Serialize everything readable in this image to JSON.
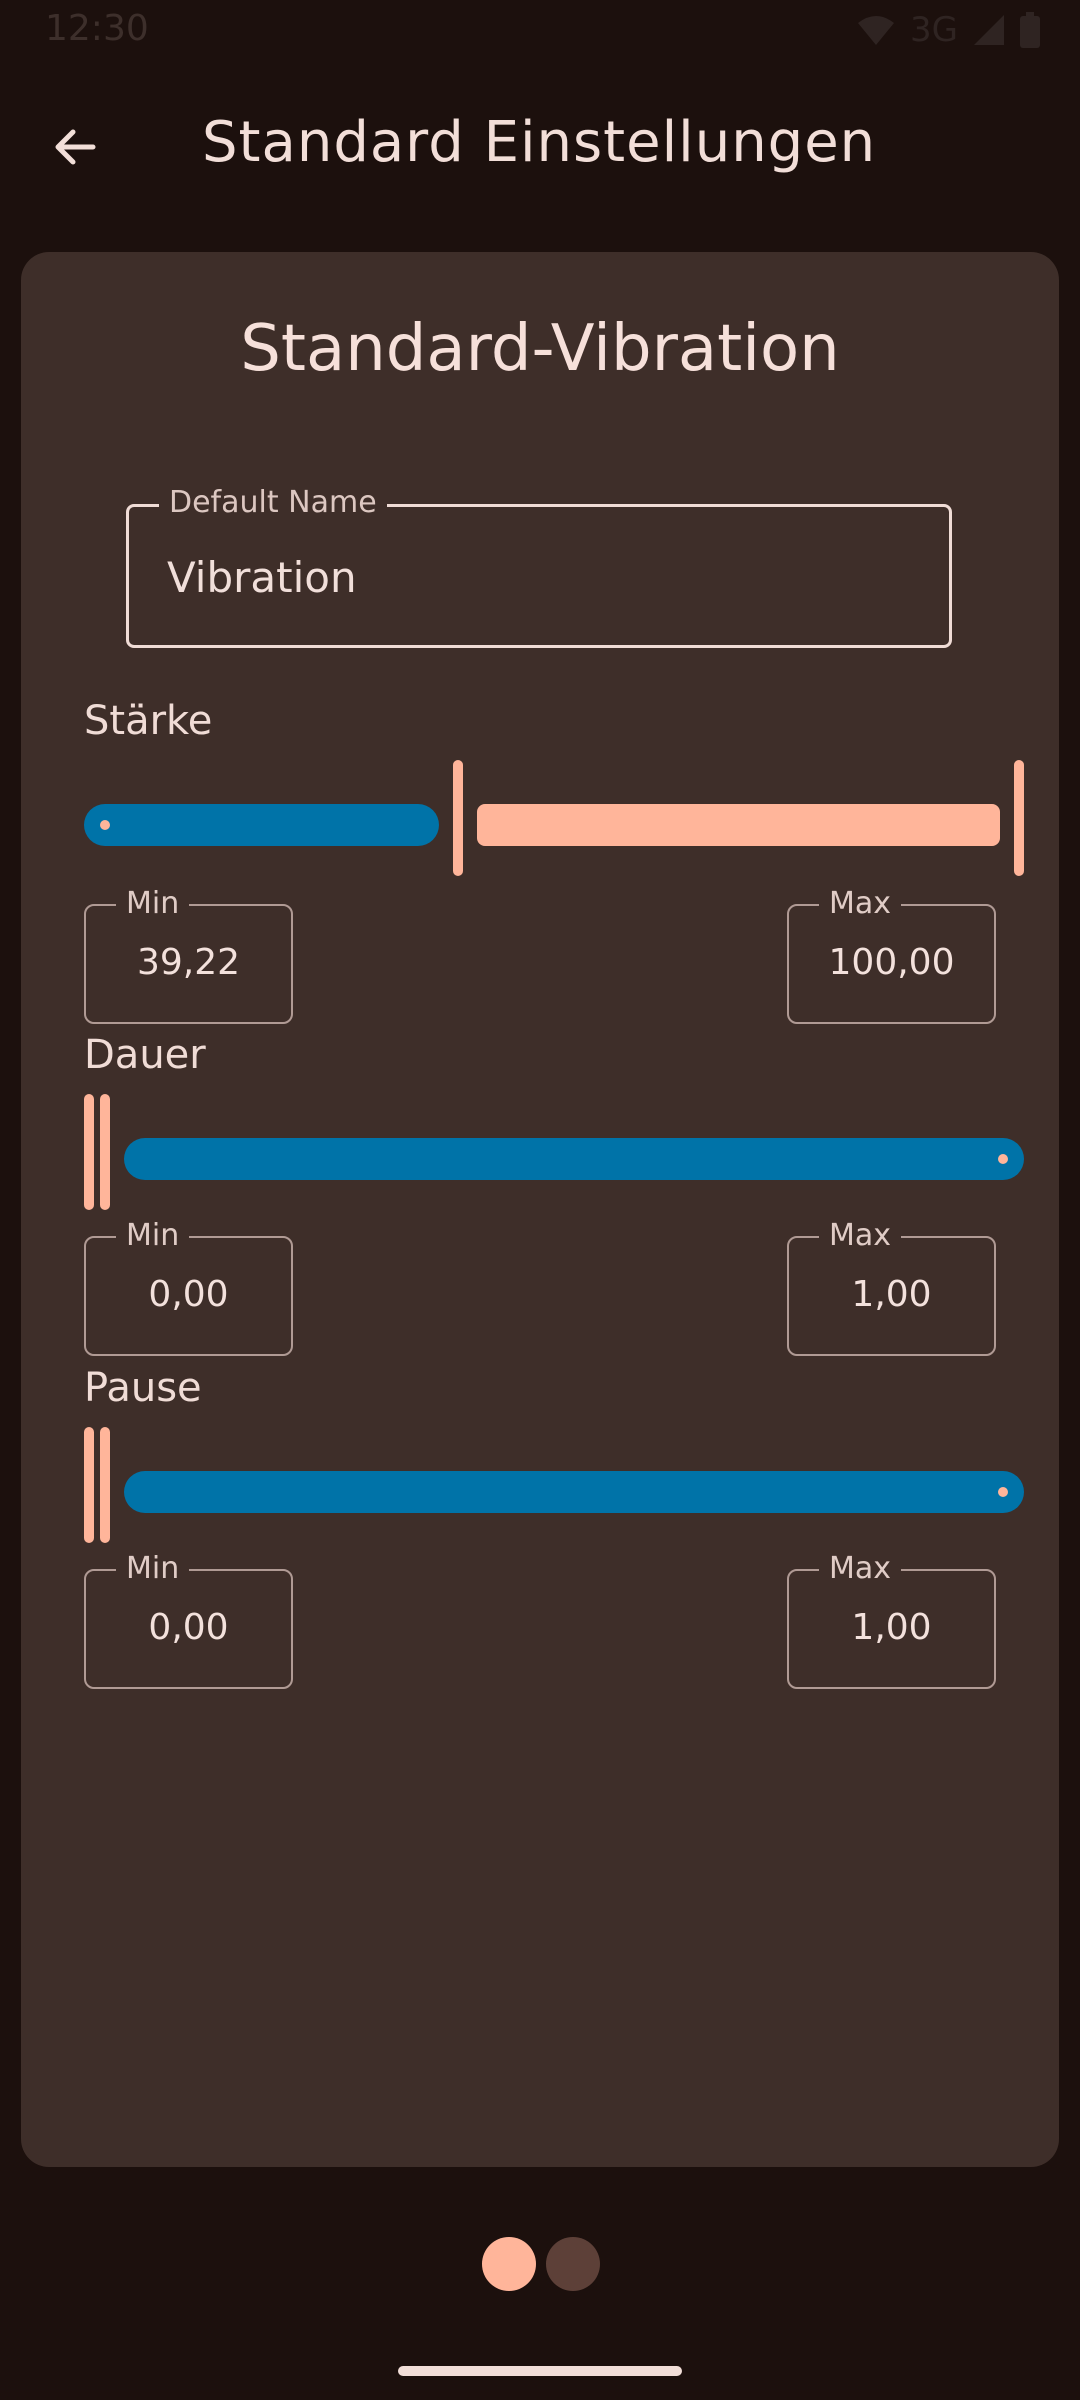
{
  "status_bar": {
    "time": "12:30",
    "network": "3G"
  },
  "header": {
    "title": "Standard Einstellungen"
  },
  "card": {
    "title": "Standard-Vibration",
    "name_field": {
      "label": "Default Name",
      "value": "Vibration"
    }
  },
  "sections": {
    "staerke": {
      "label": "Stärke",
      "slider": {
        "min": 39.22,
        "max": 100.0,
        "range": [
          0,
          100
        ]
      },
      "min_box": {
        "label": "Min",
        "value": "39,22"
      },
      "max_box": {
        "label": "Max",
        "value": "100,00"
      }
    },
    "dauer": {
      "label": "Dauer",
      "slider": {
        "min": 0.0,
        "max": 1.0,
        "range": [
          0,
          100
        ]
      },
      "min_box": {
        "label": "Min",
        "value": "0,00"
      },
      "max_box": {
        "label": "Max",
        "value": "1,00"
      }
    },
    "pause": {
      "label": "Pause",
      "slider": {
        "min": 0.0,
        "max": 1.0,
        "range": [
          0,
          100
        ]
      },
      "min_box": {
        "label": "Min",
        "value": "0,00"
      },
      "max_box": {
        "label": "Max",
        "value": "1,00"
      }
    }
  },
  "pager": {
    "page_count": 2,
    "current_page": 1
  },
  "colors": {
    "background": "#1c100d",
    "card": "#3e2e29",
    "accent": "#ffb59a",
    "track_active": "#0073a8",
    "pager_inactive": "#5d4038"
  }
}
